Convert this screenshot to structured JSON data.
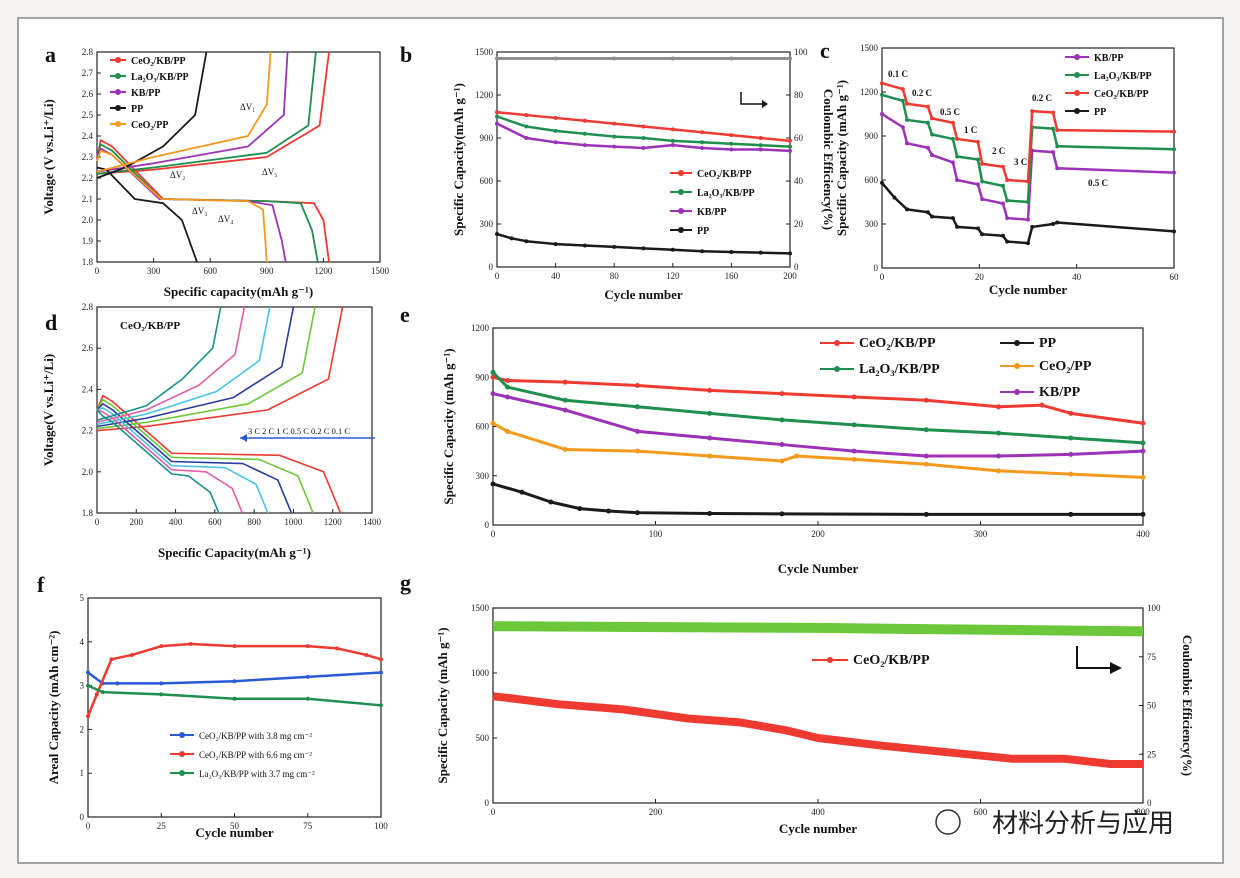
{
  "colors": {
    "red": "#ee3a31",
    "green": "#1f8f4e",
    "purple": "#9b32b8",
    "black": "#1a1a1a",
    "orange": "#f39a1e",
    "blue": "#2a5bd7",
    "gray": "#8e8e8e",
    "lime": "#6cc83a",
    "lightgreen": "#2bbf6a",
    "cyan": "#49c2ea",
    "teal": "#1c8f8f",
    "navy": "#283b9a",
    "pink": "#e05fa4"
  },
  "watermark": {
    "text": "材料分析与应用"
  },
  "chart_data": [
    {
      "panel": "a",
      "type": "line",
      "xlabel": "Specific capacity(mAh g⁻¹)",
      "ylabel": "Voltage (V vs.Li⁺/Li)",
      "xlim": [
        0,
        1500
      ],
      "ylim": [
        1.8,
        2.8
      ],
      "xticks": [
        "0",
        "300",
        "600",
        "900",
        "1200",
        "1500"
      ],
      "yticks": [
        "1.8",
        "1.9",
        "2.0",
        "2.1",
        "2.2",
        "2.3",
        "2.4",
        "2.5",
        "2.6",
        "2.7",
        "2.8"
      ],
      "legend": [
        "CeO₂/KB/PP",
        "La₂O₃/KB/PP",
        "KB/PP",
        "PP",
        "CeO₂/PP"
      ],
      "annotations": [
        "ΔV₁",
        "ΔV₂",
        "ΔV₃",
        "ΔV₄",
        "ΔV₅"
      ],
      "series": [
        {
          "name": "CeO₂/KB/PP",
          "color": "red",
          "discharge": [
            [
              0,
              2.29
            ],
            [
              20,
              2.38
            ],
            [
              80,
              2.35
            ],
            [
              350,
              2.1
            ],
            [
              900,
              2.09
            ],
            [
              1150,
              2.08
            ],
            [
              1200,
              2.0
            ],
            [
              1230,
              1.8
            ]
          ],
          "charge": [
            [
              0,
              2.22
            ],
            [
              300,
              2.24
            ],
            [
              900,
              2.3
            ],
            [
              1180,
              2.45
            ],
            [
              1230,
              2.8
            ]
          ]
        },
        {
          "name": "La₂O₃/KB/PP",
          "color": "green",
          "discharge": [
            [
              0,
              2.3
            ],
            [
              20,
              2.36
            ],
            [
              80,
              2.33
            ],
            [
              340,
              2.1
            ],
            [
              900,
              2.09
            ],
            [
              1080,
              2.08
            ],
            [
              1140,
              1.95
            ],
            [
              1170,
              1.8
            ]
          ],
          "charge": [
            [
              0,
              2.22
            ],
            [
              300,
              2.25
            ],
            [
              900,
              2.32
            ],
            [
              1120,
              2.45
            ],
            [
              1160,
              2.8
            ]
          ]
        },
        {
          "name": "KB/PP",
          "color": "purple",
          "discharge": [
            [
              0,
              2.31
            ],
            [
              20,
              2.34
            ],
            [
              80,
              2.31
            ],
            [
              330,
              2.1
            ],
            [
              800,
              2.09
            ],
            [
              930,
              2.07
            ],
            [
              980,
              1.9
            ],
            [
              1000,
              1.8
            ]
          ],
          "charge": [
            [
              0,
              2.23
            ],
            [
              300,
              2.27
            ],
            [
              800,
              2.35
            ],
            [
              990,
              2.5
            ],
            [
              1010,
              2.8
            ]
          ]
        },
        {
          "name": "PP",
          "color": "black",
          "discharge": [
            [
              0,
              2.25
            ],
            [
              50,
              2.24
            ],
            [
              200,
              2.1
            ],
            [
              350,
              2.08
            ],
            [
              450,
              2.0
            ],
            [
              530,
              1.8
            ]
          ],
          "charge": [
            [
              0,
              2.2
            ],
            [
              150,
              2.25
            ],
            [
              350,
              2.35
            ],
            [
              520,
              2.5
            ],
            [
              580,
              2.8
            ]
          ]
        },
        {
          "name": "CeO₂/PP",
          "color": "orange",
          "discharge": [
            [
              0,
              2.28
            ],
            [
              20,
              2.33
            ],
            [
              80,
              2.31
            ],
            [
              340,
              2.1
            ],
            [
              800,
              2.09
            ],
            [
              880,
              2.05
            ],
            [
              900,
              1.8
            ]
          ],
          "charge": [
            [
              0,
              2.23
            ],
            [
              300,
              2.3
            ],
            [
              800,
              2.4
            ],
            [
              900,
              2.55
            ],
            [
              920,
              2.8
            ]
          ]
        }
      ]
    },
    {
      "panel": "b",
      "type": "line",
      "xlabel": "Cycle number",
      "ylabel": "Specific Capacity(mAh g⁻¹)",
      "y2label": "Coulombic Efficiency(%)",
      "xlim": [
        0,
        200
      ],
      "ylim": [
        0,
        1500
      ],
      "y2lim": [
        0,
        100
      ],
      "xticks": [
        "0",
        "40",
        "80",
        "120",
        "160",
        "200"
      ],
      "yticks": [
        "0",
        "300",
        "600",
        "900",
        "1200",
        "1500"
      ],
      "y2ticks": [
        "0",
        "20",
        "40",
        "60",
        "80",
        "100"
      ],
      "series": [
        {
          "name": "CeO₂/KB/PP",
          "color": "red",
          "x": [
            0,
            20,
            40,
            60,
            80,
            100,
            120,
            140,
            160,
            180,
            200
          ],
          "y": [
            1080,
            1060,
            1040,
            1020,
            1000,
            980,
            960,
            940,
            920,
            900,
            880
          ]
        },
        {
          "name": "La₂O₃/KB/PP",
          "color": "green",
          "x": [
            0,
            20,
            40,
            60,
            80,
            100,
            120,
            140,
            160,
            180,
            200
          ],
          "y": [
            1050,
            980,
            950,
            930,
            910,
            900,
            880,
            870,
            860,
            850,
            840
          ]
        },
        {
          "name": "KB/PP",
          "color": "purple",
          "x": [
            0,
            20,
            40,
            60,
            80,
            100,
            120,
            140,
            160,
            180,
            200
          ],
          "y": [
            1000,
            900,
            870,
            850,
            840,
            830,
            850,
            830,
            820,
            820,
            810
          ]
        },
        {
          "name": "PP",
          "color": "black",
          "x": [
            0,
            10,
            20,
            40,
            60,
            80,
            100,
            120,
            140,
            160,
            180,
            200
          ],
          "y": [
            230,
            200,
            180,
            160,
            150,
            140,
            130,
            120,
            110,
            105,
            100,
            95
          ]
        },
        {
          "name": "Coulombic Efficiency",
          "color": "gray",
          "axis": "y2",
          "x": [
            0,
            40,
            80,
            120,
            160,
            200
          ],
          "y": [
            97,
            97,
            97,
            97,
            97,
            97
          ]
        }
      ]
    },
    {
      "panel": "c",
      "type": "line",
      "xlabel": "Cycle number",
      "ylabel": "Specific Capacity (mAh g⁻¹)",
      "xlim": [
        0,
        70
      ],
      "ylim": [
        0,
        1500
      ],
      "xticks": [
        "0",
        "20",
        "40",
        "60"
      ],
      "yticks": [
        "0",
        "300",
        "600",
        "900",
        "1200",
        "1500"
      ],
      "rate_labels": [
        "0.1 C",
        "0.2 C",
        "0.5 C",
        "1 C",
        "2 C",
        "3 C",
        "0.2 C",
        "0.5 C"
      ],
      "series": [
        {
          "name": "KB/PP",
          "color": "purple",
          "x": [
            0,
            5,
            6,
            11,
            12,
            17,
            18,
            23,
            24,
            29,
            30,
            35,
            36,
            41,
            42,
            70
          ],
          "y": [
            1050,
            960,
            850,
            820,
            770,
            720,
            600,
            570,
            470,
            440,
            340,
            330,
            800,
            790,
            680,
            650
          ]
        },
        {
          "name": "La₂O₃/KB/PP",
          "color": "green",
          "x": [
            0,
            5,
            6,
            11,
            12,
            17,
            18,
            23,
            24,
            29,
            30,
            35,
            36,
            41,
            42,
            70
          ],
          "y": [
            1180,
            1140,
            1010,
            990,
            910,
            880,
            760,
            740,
            590,
            560,
            460,
            450,
            960,
            950,
            830,
            810
          ]
        },
        {
          "name": "CeO₂/KB/PP",
          "color": "red",
          "x": [
            0,
            5,
            6,
            11,
            12,
            17,
            18,
            23,
            24,
            29,
            30,
            35,
            36,
            41,
            42,
            70
          ],
          "y": [
            1260,
            1220,
            1120,
            1100,
            1020,
            990,
            880,
            860,
            710,
            690,
            600,
            590,
            1070,
            1060,
            940,
            930
          ]
        },
        {
          "name": "PP",
          "color": "black",
          "x": [
            0,
            3,
            6,
            11,
            12,
            17,
            18,
            23,
            24,
            29,
            30,
            35,
            36,
            41,
            42,
            70
          ],
          "y": [
            580,
            480,
            400,
            380,
            350,
            340,
            280,
            270,
            230,
            220,
            180,
            170,
            280,
            300,
            310,
            250
          ]
        }
      ]
    },
    {
      "panel": "d",
      "type": "line",
      "title": "CeO₂/KB/PP",
      "xlabel": "Specific Capacity(mAh g⁻¹)",
      "ylabel": "Voltage(V vs.Li⁺/Li)",
      "xlim": [
        0,
        1400
      ],
      "ylim": [
        1.8,
        2.8
      ],
      "xticks": [
        "0",
        "200",
        "400",
        "600",
        "800",
        "1000",
        "1200",
        "1400"
      ],
      "yticks": [
        "1.8",
        "2.0",
        "2.2",
        "2.4",
        "2.6",
        "2.8"
      ],
      "rates": "3 C  2 C  1 C  0.5 C  0.2 C  0.1 C",
      "series": [
        {
          "name": "0.1 C",
          "color": "red",
          "end": 1240
        },
        {
          "name": "0.2 C",
          "color": "lime",
          "end": 1100
        },
        {
          "name": "0.5 C",
          "color": "navy",
          "end": 990
        },
        {
          "name": "1 C",
          "color": "cyan",
          "end": 870
        },
        {
          "name": "2 C",
          "color": "pink",
          "end": 740
        },
        {
          "name": "3 C",
          "color": "teal",
          "end": 620
        }
      ]
    },
    {
      "panel": "e",
      "type": "line",
      "xlabel": "Cycle Number",
      "ylabel": "Specific Capacity (mAh g⁻¹)",
      "xlim": [
        0,
        450
      ],
      "ylim": [
        0,
        1200
      ],
      "xticks": [
        "0",
        "100",
        "200",
        "300",
        "400"
      ],
      "yticks": [
        "0",
        "300",
        "600",
        "900",
        "1200"
      ],
      "series": [
        {
          "name": "CeO₂/KB/PP",
          "color": "red",
          "x": [
            0,
            10,
            50,
            100,
            150,
            200,
            250,
            300,
            350,
            380,
            400,
            450
          ],
          "y": [
            900,
            880,
            870,
            850,
            820,
            800,
            780,
            760,
            720,
            730,
            680,
            620
          ]
        },
        {
          "name": "PP",
          "color": "black",
          "x": [
            0,
            20,
            40,
            60,
            80,
            100,
            150,
            200,
            300,
            400,
            450
          ],
          "y": [
            250,
            200,
            140,
            100,
            85,
            75,
            70,
            68,
            65,
            65,
            65
          ]
        },
        {
          "name": "La₂O₃/KB/PP",
          "color": "green",
          "x": [
            0,
            10,
            50,
            100,
            150,
            200,
            250,
            300,
            350,
            400,
            450
          ],
          "y": [
            930,
            840,
            760,
            720,
            680,
            640,
            610,
            580,
            560,
            530,
            500
          ]
        },
        {
          "name": "CeO₂/PP",
          "color": "orange",
          "x": [
            0,
            10,
            50,
            100,
            150,
            200,
            210,
            250,
            300,
            350,
            400,
            450
          ],
          "y": [
            620,
            570,
            460,
            450,
            420,
            390,
            420,
            400,
            370,
            330,
            310,
            290
          ]
        },
        {
          "name": "KB/PP",
          "color": "purple",
          "x": [
            0,
            10,
            50,
            100,
            150,
            200,
            250,
            300,
            350,
            400,
            450
          ],
          "y": [
            800,
            780,
            700,
            570,
            530,
            490,
            450,
            420,
            420,
            430,
            450
          ]
        }
      ]
    },
    {
      "panel": "f",
      "type": "line",
      "xlabel": "Cycle number",
      "ylabel": "Areal Capacity (mAh cm⁻²)",
      "xlim": [
        0,
        100
      ],
      "ylim": [
        0,
        5
      ],
      "xticks": [
        "0",
        "25",
        "50",
        "75",
        "100"
      ],
      "yticks": [
        "0",
        "1",
        "2",
        "3",
        "4",
        "5"
      ],
      "series": [
        {
          "name": "CeO₂/KB/PP with 3.8 mg cm⁻²",
          "color": "blue",
          "x": [
            0,
            5,
            10,
            25,
            50,
            75,
            100
          ],
          "y": [
            3.3,
            3.05,
            3.05,
            3.05,
            3.1,
            3.2,
            3.3
          ]
        },
        {
          "name": "CeO₂/KB/PP with 6.6 mg cm⁻²",
          "color": "red",
          "x": [
            0,
            3,
            8,
            15,
            25,
            35,
            50,
            75,
            85,
            95,
            100
          ],
          "y": [
            2.3,
            2.8,
            3.6,
            3.7,
            3.9,
            3.95,
            3.9,
            3.9,
            3.85,
            3.7,
            3.6
          ]
        },
        {
          "name": "La₂O₃/KB/PP with 3.7 mg cm⁻²",
          "color": "green",
          "x": [
            0,
            5,
            25,
            50,
            75,
            100
          ],
          "y": [
            3.0,
            2.85,
            2.8,
            2.7,
            2.7,
            2.55
          ]
        }
      ]
    },
    {
      "panel": "g",
      "type": "line",
      "xlabel": "Cycle number",
      "ylabel": "Specific Capacity (mAh g⁻¹)",
      "y2label": "Coulombic Efficiency(%)",
      "xlim": [
        0,
        1000
      ],
      "ylim": [
        0,
        1500
      ],
      "y2lim": [
        0,
        112.5
      ],
      "xticks": [
        "0",
        "200",
        "400",
        "600",
        "800"
      ],
      "yticks": [
        "0",
        "500",
        "1000",
        "1500"
      ],
      "y2ticks": [
        "0",
        "25",
        "50",
        "75",
        "100"
      ],
      "series": [
        {
          "name": "CeO₂/KB/PP",
          "color": "red",
          "x": [
            0,
            20,
            100,
            200,
            300,
            380,
            450,
            500,
            600,
            700,
            800,
            880,
            950,
            1000
          ],
          "y": [
            820,
            810,
            760,
            720,
            650,
            620,
            560,
            500,
            440,
            390,
            340,
            340,
            300,
            300
          ]
        },
        {
          "name": "Coulombic Efficiency",
          "color": "lime",
          "axis": "y2",
          "x": [
            0,
            500,
            1000
          ],
          "y": [
            102,
            101,
            99
          ]
        }
      ]
    }
  ]
}
